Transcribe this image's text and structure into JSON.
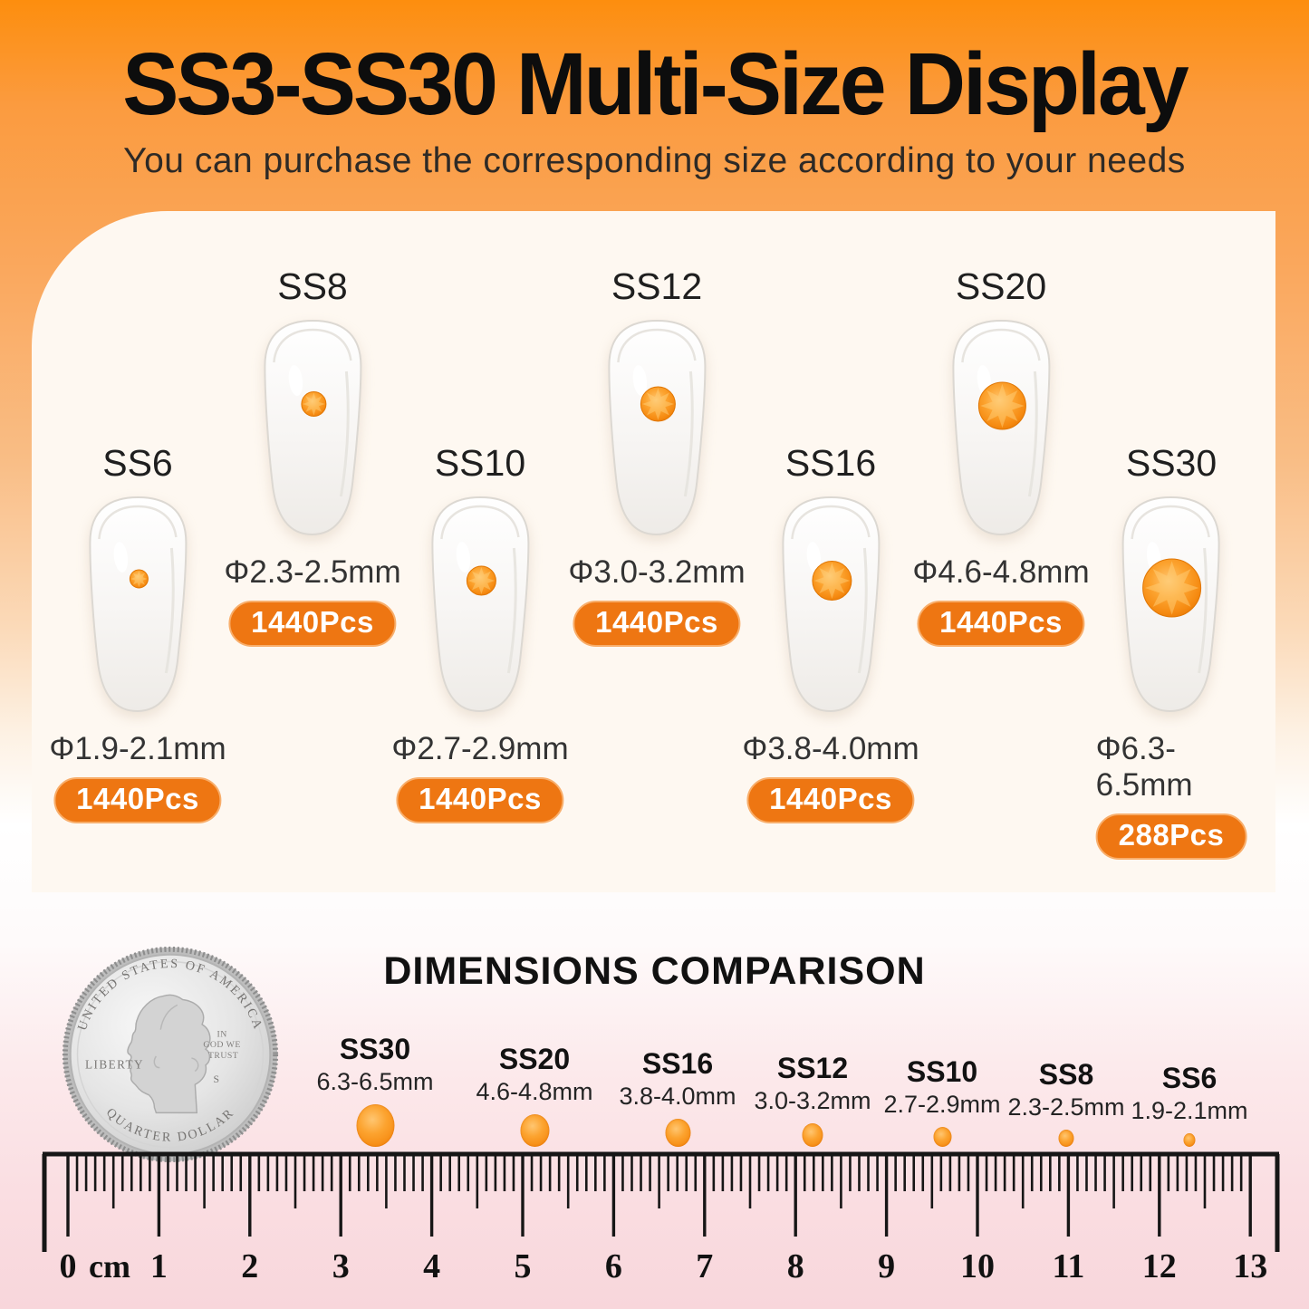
{
  "header": {
    "title": "SS3-SS30 Multi-Size Display",
    "subtitle": "You can purchase the corresponding size according to your needs"
  },
  "display": {
    "items": [
      {
        "id": "ss8",
        "name": "SS8",
        "diameter": "Φ2.3-2.5mm",
        "pcs": "1440Pcs",
        "row": "top"
      },
      {
        "id": "ss12",
        "name": "SS12",
        "diameter": "Φ3.0-3.2mm",
        "pcs": "1440Pcs",
        "row": "top"
      },
      {
        "id": "ss20",
        "name": "SS20",
        "diameter": "Φ4.6-4.8mm",
        "pcs": "1440Pcs",
        "row": "top"
      },
      {
        "id": "ss6",
        "name": "SS6",
        "diameter": "Φ1.9-2.1mm",
        "pcs": "1440Pcs",
        "row": "bottom"
      },
      {
        "id": "ss10",
        "name": "SS10",
        "diameter": "Φ2.7-2.9mm",
        "pcs": "1440Pcs",
        "row": "bottom"
      },
      {
        "id": "ss16",
        "name": "SS16",
        "diameter": "Φ3.8-4.0mm",
        "pcs": "1440Pcs",
        "row": "bottom"
      },
      {
        "id": "ss30",
        "name": "SS30",
        "diameter": "Φ6.3-6.5mm",
        "pcs": "288Pcs",
        "row": "bottom"
      }
    ]
  },
  "comparison": {
    "title": "DIMENSIONS COMPARISON",
    "items": [
      {
        "id": "ss30",
        "name": "SS30",
        "size": "6.3-6.5mm"
      },
      {
        "id": "ss20",
        "name": "SS20",
        "size": "4.6-4.8mm"
      },
      {
        "id": "ss16",
        "name": "SS16",
        "size": "3.8-4.0mm"
      },
      {
        "id": "ss12",
        "name": "SS12",
        "size": "3.0-3.2mm"
      },
      {
        "id": "ss10",
        "name": "SS10",
        "size": "2.7-2.9mm"
      },
      {
        "id": "ss8",
        "name": "SS8",
        "size": "2.3-2.5mm"
      },
      {
        "id": "ss6",
        "name": "SS6",
        "size": "1.9-2.1mm"
      }
    ]
  },
  "coin": {
    "top_text": "UNITED STATES OF AMERICA",
    "left_text": "LIBERTY",
    "motto_lines": [
      "IN",
      "GOD WE",
      "TRUST"
    ],
    "mint_mark": "S",
    "bottom_text": "QUARTER DOLLAR"
  },
  "ruler": {
    "unit_suffix": "cm",
    "numbers": [
      "0",
      "1",
      "2",
      "3",
      "4",
      "5",
      "6",
      "7",
      "8",
      "9",
      "10",
      "11",
      "12",
      "13"
    ]
  },
  "colors": {
    "accent_orange": "#EE7612",
    "stone_orange": "#F68B12",
    "background_top_orange": "#FD8E0E",
    "background_bottom_pink": "#F8D6DB",
    "card_cream": "#FEF8F1",
    "title_black": "#0D0D0D"
  }
}
